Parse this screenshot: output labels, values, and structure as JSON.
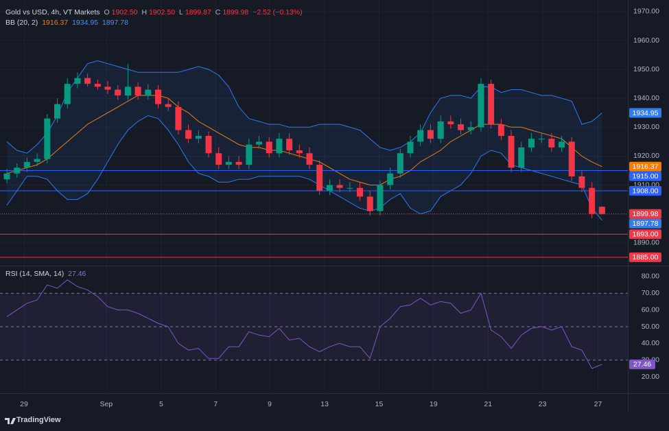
{
  "header": {
    "title": "Gold vs USD, 4h, VT Markets",
    "ohlc": [
      [
        "O",
        "1902.50"
      ],
      [
        "H",
        "1902.50"
      ],
      [
        "L",
        "1899.87"
      ],
      [
        "C",
        "1899.98"
      ]
    ],
    "change": "−2.52 (−0.13%)"
  },
  "bb_legend": {
    "label": "BB (20, 2)",
    "values": [
      "1916.37",
      "1934.95",
      "1897.78"
    ]
  },
  "rsi_legend": {
    "label": "RSI (14, SMA, 14)",
    "value": "27.46"
  },
  "branding": "TradingView",
  "chart_data": [
    {
      "type": "candlestick",
      "up_color": "#089981",
      "down_color": "#f23645",
      "xlim": [
        -0.68,
        61.56
      ],
      "ylim": [
        1882.6,
        1974
      ],
      "xticks": [
        {
          "value": 1.7,
          "label": "29"
        },
        {
          "value": 9.86,
          "label": "Sep"
        },
        {
          "value": 15.3,
          "label": "5"
        },
        {
          "value": 20.7,
          "label": "7"
        },
        {
          "value": 26.05,
          "label": "9"
        },
        {
          "value": 31.5,
          "label": "13"
        },
        {
          "value": 36.9,
          "label": "15"
        },
        {
          "value": 42.3,
          "label": "19"
        },
        {
          "value": 47.7,
          "label": "21"
        },
        {
          "value": 53.1,
          "label": "23"
        },
        {
          "value": 58.6,
          "label": "27"
        }
      ],
      "yticks": [
        {
          "value": 1970,
          "label": "1970.00"
        },
        {
          "value": 1960,
          "label": "1960.00"
        },
        {
          "value": 1950,
          "label": "1950.00"
        },
        {
          "value": 1940,
          "label": "1940.00"
        },
        {
          "value": 1930,
          "label": "1930.00"
        },
        {
          "value": 1920,
          "label": "1920.00"
        },
        {
          "value": 1910,
          "label": "1910.00"
        },
        {
          "value": 1900,
          "label": "1900.00"
        },
        {
          "value": 1890,
          "label": "1890.00"
        }
      ],
      "open": [
        1912,
        1914,
        1916,
        1918,
        1919,
        1933,
        1938,
        1945,
        1947,
        1945,
        1944,
        1943,
        1941,
        1944,
        1941,
        1943,
        1938,
        1937,
        1929,
        1926,
        1927,
        1921,
        1917,
        1918,
        1917,
        1924,
        1925,
        1921,
        1926,
        1922,
        1921,
        1917,
        1908,
        1910,
        1909,
        1909,
        1906,
        1901,
        1910,
        1914,
        1921,
        1925,
        1929,
        1926,
        1932,
        1931,
        1929,
        1930,
        1945,
        1931,
        1927,
        1916,
        1923,
        1926,
        1926,
        1923,
        1925,
        1913,
        1909,
        1902.5
      ],
      "high": [
        1915.5,
        1917.5,
        1919.5,
        1921,
        1934.5,
        1940,
        1947,
        1949,
        1948.5,
        1946.5,
        1946,
        1944.5,
        1952,
        1945.5,
        1945,
        1944.5,
        1940,
        1939,
        1931,
        1929,
        1928.5,
        1923,
        1920,
        1920,
        1926,
        1927,
        1926.5,
        1928,
        1928,
        1924,
        1923,
        1918.5,
        1912,
        1912,
        1911,
        1911,
        1908,
        1911.5,
        1916,
        1922.5,
        1927,
        1931,
        1931,
        1934,
        1934,
        1933,
        1932,
        1947,
        1946.5,
        1933,
        1929,
        1925,
        1928,
        1928,
        1928,
        1927,
        1926.5,
        1915,
        1911,
        1902.5
      ],
      "low": [
        1910.5,
        1912.5,
        1914.5,
        1916.5,
        1917.5,
        1931.5,
        1936.5,
        1943.5,
        1944,
        1943,
        1941.5,
        1939.5,
        1939.5,
        1939.5,
        1939.5,
        1936.5,
        1935.5,
        1927.5,
        1924.5,
        1924.5,
        1919.5,
        1915.5,
        1915.5,
        1915.5,
        1915.5,
        1922.5,
        1919.5,
        1919.5,
        1920.5,
        1919.5,
        1915.5,
        1906.5,
        1906.5,
        1907.5,
        1907.5,
        1904.5,
        1899.5,
        1899.5,
        1908.5,
        1912.5,
        1919.5,
        1923.5,
        1924.5,
        1924.5,
        1929.5,
        1927.5,
        1927.5,
        1928.5,
        1929.5,
        1925.5,
        1914.5,
        1914.5,
        1921.5,
        1924.5,
        1921.5,
        1921.5,
        1911.5,
        1907.5,
        1898.5,
        1899.87
      ],
      "close": [
        1914,
        1916,
        1918,
        1919,
        1933,
        1938,
        1945,
        1947,
        1945,
        1944,
        1943,
        1941,
        1944,
        1941,
        1943,
        1938,
        1937,
        1929,
        1926,
        1927,
        1921,
        1917,
        1918,
        1917,
        1924,
        1925,
        1921,
        1926,
        1922,
        1921,
        1917,
        1908,
        1910,
        1909,
        1909,
        1906,
        1901,
        1910,
        1914,
        1921,
        1925,
        1929,
        1926,
        1932,
        1931,
        1929,
        1930,
        1945,
        1931,
        1927,
        1916,
        1923,
        1926,
        1926,
        1923,
        1925,
        1913,
        1909,
        1900,
        1899.98
      ],
      "bands": {
        "band_color": "#2f7bf0",
        "mid_color": "#f57c00",
        "upper": [
          1925,
          1922,
          1921,
          1924,
          1928,
          1934,
          1942,
          1947,
          1952,
          1953,
          1952,
          1951,
          1950,
          1949,
          1949,
          1949,
          1949,
          1949,
          1950,
          1951,
          1950,
          1948,
          1944,
          1937,
          1933,
          1932,
          1931,
          1931,
          1930,
          1930,
          1930,
          1931,
          1931,
          1931,
          1930,
          1929,
          1926,
          1923,
          1922,
          1923,
          1925,
          1928,
          1935,
          1940,
          1941,
          1941,
          1940,
          1944,
          1944,
          1942,
          1943,
          1943,
          1942,
          1941,
          1941,
          1940,
          1939,
          1931,
          1932,
          1934.95
        ],
        "middle": [
          1914,
          1915,
          1916,
          1917,
          1919,
          1922,
          1925,
          1928,
          1931,
          1933,
          1935,
          1937,
          1939,
          1941,
          1941,
          1941,
          1940,
          1937,
          1935,
          1932,
          1930,
          1928,
          1926,
          1924,
          1923,
          1923,
          1922,
          1922,
          1921,
          1920,
          1919,
          1918,
          1916,
          1914,
          1912,
          1911,
          1910,
          1910,
          1912,
          1913,
          1915,
          1918,
          1920,
          1922,
          1925,
          1927,
          1929,
          1931,
          1931,
          1931,
          1930,
          1930,
          1929,
          1928,
          1927,
          1926,
          1923,
          1920,
          1918,
          1916.37
        ],
        "lower": [
          1903,
          1908,
          1913,
          1913,
          1912,
          1908,
          1905,
          1905,
          1907,
          1912,
          1918,
          1924,
          1929,
          1932,
          1934,
          1933,
          1929,
          1924,
          1918,
          1914,
          1913,
          1911,
          1911,
          1912,
          1912,
          1913,
          1913,
          1913,
          1913,
          1913,
          1912,
          1910,
          1908,
          1906,
          1904,
          1902,
          1901,
          1902,
          1905,
          1907,
          1902,
          1900,
          1901,
          1906,
          1908,
          1910,
          1914,
          1920,
          1922,
          1921,
          1917,
          1916,
          1915,
          1914,
          1913,
          1912,
          1911,
          1910,
          1902,
          1897.78
        ]
      },
      "price_lines": [
        {
          "value": 1934.95,
          "label": "1934.95",
          "color": "#2f7bf0",
          "line": "none"
        },
        {
          "value": 1916.37,
          "label": "1916.37",
          "color": "#f57c00",
          "line": "none"
        },
        {
          "value": 1915,
          "label": "1915.00",
          "color": "#2962ff",
          "line": "solid"
        },
        {
          "value": 1908,
          "label": "1908.00",
          "color": "#2962ff",
          "line": "solid"
        },
        {
          "value": 1899.98,
          "label": "1899.98",
          "color": "#f23645",
          "line": "dotted"
        },
        {
          "value": 1897.78,
          "label": "1897.78",
          "color": "#2f7bf0",
          "line": "none"
        },
        {
          "value": 1893,
          "label": "1893.00",
          "color": "#f23645",
          "line": "solid"
        },
        {
          "value": 1885,
          "label": "1885.00",
          "color": "#f23645",
          "line": "solid"
        }
      ]
    },
    {
      "type": "line",
      "color": "#7e57c2",
      "ylim": [
        11.4,
        85.3
      ],
      "yticks": [
        {
          "value": 80,
          "label": "80.00"
        },
        {
          "value": 70,
          "label": "70.00"
        },
        {
          "value": 60,
          "label": "60.00"
        },
        {
          "value": 50,
          "label": "50.00"
        },
        {
          "value": 40,
          "label": "40.00"
        },
        {
          "value": 30,
          "label": "30.00"
        },
        {
          "value": 20,
          "label": "20.00"
        }
      ],
      "bands": {
        "upper": 70,
        "middle": 50,
        "lower": 30
      },
      "values": [
        56,
        60,
        64,
        66,
        75,
        73,
        78,
        74,
        72,
        68,
        62,
        60,
        60,
        58,
        55,
        52,
        50,
        40,
        36,
        37,
        31,
        31,
        38,
        38,
        47,
        45,
        44,
        49,
        42,
        43,
        38,
        35,
        38,
        40,
        38,
        38,
        31,
        50,
        55,
        62,
        63,
        67,
        63,
        65,
        64,
        58,
        60,
        70,
        48,
        44,
        37,
        45,
        49,
        50,
        48,
        50,
        38,
        36,
        25,
        27.46
      ],
      "tag": {
        "value": 27.46,
        "label": "27.46"
      }
    }
  ]
}
